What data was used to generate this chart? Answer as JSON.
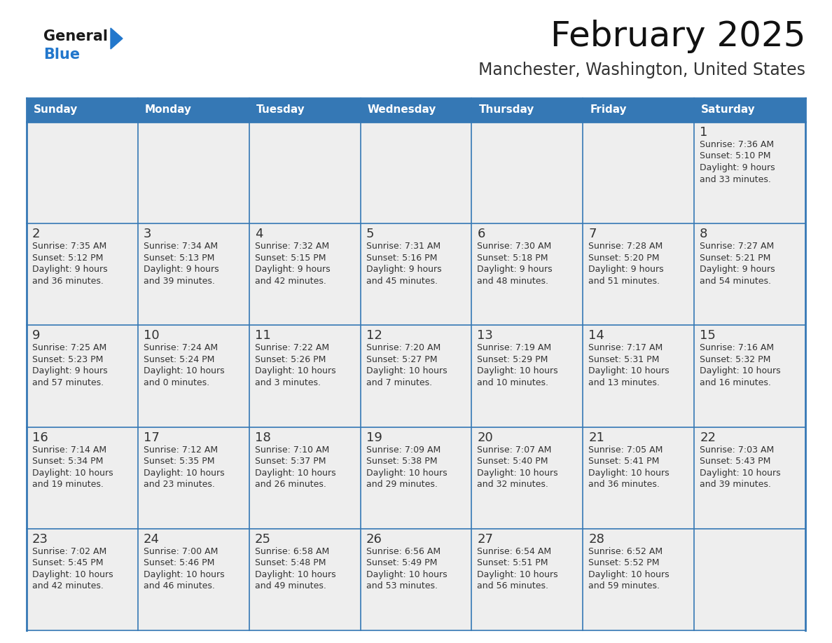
{
  "title": "February 2025",
  "subtitle": "Manchester, Washington, United States",
  "header_bg": "#3578b5",
  "header_text_color": "#ffffff",
  "cell_bg_odd": "#f0f4f8",
  "cell_bg_even": "#f0f4f8",
  "cell_bg": "#eeeeee",
  "border_color": "#3578b5",
  "day_number_color": "#333333",
  "cell_text_color": "#333333",
  "days_of_week": [
    "Sunday",
    "Monday",
    "Tuesday",
    "Wednesday",
    "Thursday",
    "Friday",
    "Saturday"
  ],
  "logo_general_color": "#1a1a1a",
  "logo_blue_color": "#2277cc",
  "weeks": [
    [
      {
        "day": null,
        "sunrise": null,
        "sunset": null,
        "daylight_line1": null,
        "daylight_line2": null
      },
      {
        "day": null,
        "sunrise": null,
        "sunset": null,
        "daylight_line1": null,
        "daylight_line2": null
      },
      {
        "day": null,
        "sunrise": null,
        "sunset": null,
        "daylight_line1": null,
        "daylight_line2": null
      },
      {
        "day": null,
        "sunrise": null,
        "sunset": null,
        "daylight_line1": null,
        "daylight_line2": null
      },
      {
        "day": null,
        "sunrise": null,
        "sunset": null,
        "daylight_line1": null,
        "daylight_line2": null
      },
      {
        "day": null,
        "sunrise": null,
        "sunset": null,
        "daylight_line1": null,
        "daylight_line2": null
      },
      {
        "day": 1,
        "sunrise": "7:36 AM",
        "sunset": "5:10 PM",
        "daylight_line1": "9 hours",
        "daylight_line2": "and 33 minutes."
      }
    ],
    [
      {
        "day": 2,
        "sunrise": "7:35 AM",
        "sunset": "5:12 PM",
        "daylight_line1": "9 hours",
        "daylight_line2": "and 36 minutes."
      },
      {
        "day": 3,
        "sunrise": "7:34 AM",
        "sunset": "5:13 PM",
        "daylight_line1": "9 hours",
        "daylight_line2": "and 39 minutes."
      },
      {
        "day": 4,
        "sunrise": "7:32 AM",
        "sunset": "5:15 PM",
        "daylight_line1": "9 hours",
        "daylight_line2": "and 42 minutes."
      },
      {
        "day": 5,
        "sunrise": "7:31 AM",
        "sunset": "5:16 PM",
        "daylight_line1": "9 hours",
        "daylight_line2": "and 45 minutes."
      },
      {
        "day": 6,
        "sunrise": "7:30 AM",
        "sunset": "5:18 PM",
        "daylight_line1": "9 hours",
        "daylight_line2": "and 48 minutes."
      },
      {
        "day": 7,
        "sunrise": "7:28 AM",
        "sunset": "5:20 PM",
        "daylight_line1": "9 hours",
        "daylight_line2": "and 51 minutes."
      },
      {
        "day": 8,
        "sunrise": "7:27 AM",
        "sunset": "5:21 PM",
        "daylight_line1": "9 hours",
        "daylight_line2": "and 54 minutes."
      }
    ],
    [
      {
        "day": 9,
        "sunrise": "7:25 AM",
        "sunset": "5:23 PM",
        "daylight_line1": "9 hours",
        "daylight_line2": "and 57 minutes."
      },
      {
        "day": 10,
        "sunrise": "7:24 AM",
        "sunset": "5:24 PM",
        "daylight_line1": "10 hours",
        "daylight_line2": "and 0 minutes."
      },
      {
        "day": 11,
        "sunrise": "7:22 AM",
        "sunset": "5:26 PM",
        "daylight_line1": "10 hours",
        "daylight_line2": "and 3 minutes."
      },
      {
        "day": 12,
        "sunrise": "7:20 AM",
        "sunset": "5:27 PM",
        "daylight_line1": "10 hours",
        "daylight_line2": "and 7 minutes."
      },
      {
        "day": 13,
        "sunrise": "7:19 AM",
        "sunset": "5:29 PM",
        "daylight_line1": "10 hours",
        "daylight_line2": "and 10 minutes."
      },
      {
        "day": 14,
        "sunrise": "7:17 AM",
        "sunset": "5:31 PM",
        "daylight_line1": "10 hours",
        "daylight_line2": "and 13 minutes."
      },
      {
        "day": 15,
        "sunrise": "7:16 AM",
        "sunset": "5:32 PM",
        "daylight_line1": "10 hours",
        "daylight_line2": "and 16 minutes."
      }
    ],
    [
      {
        "day": 16,
        "sunrise": "7:14 AM",
        "sunset": "5:34 PM",
        "daylight_line1": "10 hours",
        "daylight_line2": "and 19 minutes."
      },
      {
        "day": 17,
        "sunrise": "7:12 AM",
        "sunset": "5:35 PM",
        "daylight_line1": "10 hours",
        "daylight_line2": "and 23 minutes."
      },
      {
        "day": 18,
        "sunrise": "7:10 AM",
        "sunset": "5:37 PM",
        "daylight_line1": "10 hours",
        "daylight_line2": "and 26 minutes."
      },
      {
        "day": 19,
        "sunrise": "7:09 AM",
        "sunset": "5:38 PM",
        "daylight_line1": "10 hours",
        "daylight_line2": "and 29 minutes."
      },
      {
        "day": 20,
        "sunrise": "7:07 AM",
        "sunset": "5:40 PM",
        "daylight_line1": "10 hours",
        "daylight_line2": "and 32 minutes."
      },
      {
        "day": 21,
        "sunrise": "7:05 AM",
        "sunset": "5:41 PM",
        "daylight_line1": "10 hours",
        "daylight_line2": "and 36 minutes."
      },
      {
        "day": 22,
        "sunrise": "7:03 AM",
        "sunset": "5:43 PM",
        "daylight_line1": "10 hours",
        "daylight_line2": "and 39 minutes."
      }
    ],
    [
      {
        "day": 23,
        "sunrise": "7:02 AM",
        "sunset": "5:45 PM",
        "daylight_line1": "10 hours",
        "daylight_line2": "and 42 minutes."
      },
      {
        "day": 24,
        "sunrise": "7:00 AM",
        "sunset": "5:46 PM",
        "daylight_line1": "10 hours",
        "daylight_line2": "and 46 minutes."
      },
      {
        "day": 25,
        "sunrise": "6:58 AM",
        "sunset": "5:48 PM",
        "daylight_line1": "10 hours",
        "daylight_line2": "and 49 minutes."
      },
      {
        "day": 26,
        "sunrise": "6:56 AM",
        "sunset": "5:49 PM",
        "daylight_line1": "10 hours",
        "daylight_line2": "and 53 minutes."
      },
      {
        "day": 27,
        "sunrise": "6:54 AM",
        "sunset": "5:51 PM",
        "daylight_line1": "10 hours",
        "daylight_line2": "and 56 minutes."
      },
      {
        "day": 28,
        "sunrise": "6:52 AM",
        "sunset": "5:52 PM",
        "daylight_line1": "10 hours",
        "daylight_line2": "and 59 minutes."
      },
      {
        "day": null,
        "sunrise": null,
        "sunset": null,
        "daylight_line1": null,
        "daylight_line2": null
      }
    ]
  ],
  "num_weeks": 5,
  "num_cols": 7
}
